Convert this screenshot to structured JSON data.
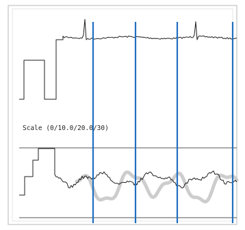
{
  "chart_data": {
    "type": "line",
    "annotation": "Scale (0/10.0/20.0/30)",
    "colors": {
      "background": "#ffffff",
      "frame": "#cfcfcf",
      "trace": "#1e1e1e",
      "marker": "#1f6fc0",
      "overlay": "#c8c8c8"
    }
  }
}
